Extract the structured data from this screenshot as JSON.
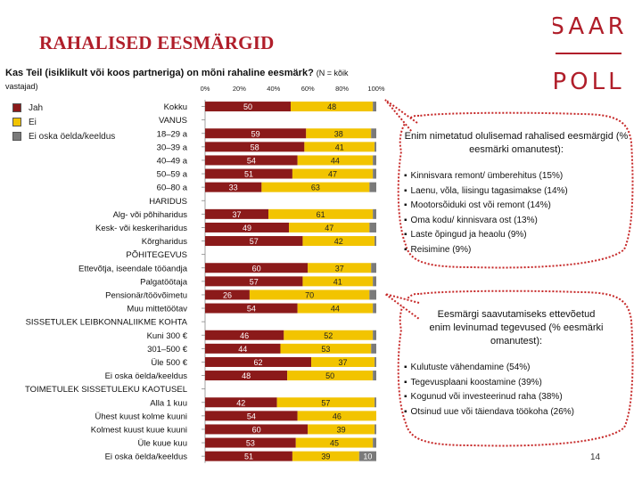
{
  "slide": {
    "title": "RAHALISED EESMÄRGID",
    "page_number": "14"
  },
  "logo": {
    "top_text": "SAAR",
    "bottom_text": "POLL",
    "accent": "#b01e2a"
  },
  "question": {
    "main": "Kas Teil (isiklikult või koos partneriga) on mõni rahaline eesmärk?",
    "note": "(N = kõik",
    "note2": "vastajad)"
  },
  "colors": {
    "jah": "#8b1a1a",
    "ei": "#f2c400",
    "eos": "#7a7a7a",
    "callout_border": "#c62828"
  },
  "callout1": {
    "title": "Enim nimetatud olulisemad rahalised eesmärgid (% eesmärki omanutest):",
    "items": [
      "Kinnisvara remont/ ümberehitus (15%)",
      "Laenu, võla, liisingu tagasimakse (14%)",
      "Mootorsõiduki ost või remont (14%)",
      "Oma kodu/ kinnisvara ost (13%)",
      "Laste õpingud ja heaolu (9%)",
      "Reisimine (9%)"
    ]
  },
  "callout2": {
    "title": "Eesmärgi saavutamiseks ettevõetud enim levinumad tegevused (% eesmärki omanutest):",
    "items": [
      "Kulutuste vähendamine (54%)",
      "Tegevusplaani koostamine (39%)",
      "Kogunud või investeerinud raha (38%)",
      "Otsinud uue või täiendava töökoha (26%)"
    ]
  },
  "chart_data": {
    "type": "bar",
    "orientation": "horizontal-stacked-100",
    "xlim": [
      0,
      100
    ],
    "xticks": [
      "0%",
      "20%",
      "40%",
      "60%",
      "80%",
      "100%"
    ],
    "legend": [
      "Jah",
      "Ei",
      "Ei oska öelda/keeldus"
    ],
    "rows": [
      {
        "label": "Kokku",
        "values": [
          50,
          48,
          2
        ],
        "labels": [
          "50",
          "48",
          ""
        ]
      },
      {
        "label": "VANUS",
        "header": true
      },
      {
        "label": "18–29 a",
        "values": [
          59,
          38,
          3
        ],
        "labels": [
          "59",
          "38",
          ""
        ]
      },
      {
        "label": "30–39 a",
        "values": [
          58,
          41,
          1
        ],
        "labels": [
          "58",
          "41",
          ""
        ]
      },
      {
        "label": "40–49 a",
        "values": [
          54,
          44,
          2
        ],
        "labels": [
          "54",
          "44",
          ""
        ]
      },
      {
        "label": "50–59 a",
        "values": [
          51,
          47,
          2
        ],
        "labels": [
          "51",
          "47",
          ""
        ]
      },
      {
        "label": "60–80 a",
        "values": [
          33,
          63,
          4
        ],
        "labels": [
          "33",
          "63",
          ""
        ]
      },
      {
        "label": "HARIDUS",
        "header": true
      },
      {
        "label": "Alg- või põhiharidus",
        "values": [
          37,
          61,
          2
        ],
        "labels": [
          "37",
          "61",
          ""
        ]
      },
      {
        "label": "Kesk- või keskeriharidus",
        "values": [
          49,
          47,
          4
        ],
        "labels": [
          "49",
          "47",
          ""
        ]
      },
      {
        "label": "Kõrgharidus",
        "values": [
          57,
          42,
          1
        ],
        "labels": [
          "57",
          "42",
          ""
        ]
      },
      {
        "label": "PÕHITEGEVUS",
        "header": true
      },
      {
        "label": "Ettevõtja, iseendale tööandja",
        "values": [
          60,
          37,
          3
        ],
        "labels": [
          "60",
          "37",
          ""
        ]
      },
      {
        "label": "Palgatöötaja",
        "values": [
          57,
          41,
          2
        ],
        "labels": [
          "57",
          "41",
          ""
        ]
      },
      {
        "label": "Pensionär/töövõimetu",
        "values": [
          26,
          70,
          4
        ],
        "labels": [
          "26",
          "70",
          ""
        ]
      },
      {
        "label": "Muu mittetöötav",
        "values": [
          54,
          44,
          2
        ],
        "labels": [
          "54",
          "44",
          ""
        ]
      },
      {
        "label": "SISSETULEK LEIBKONNALIIKME KOHTA",
        "header": true
      },
      {
        "label": "Kuni 300 €",
        "values": [
          46,
          52,
          2
        ],
        "labels": [
          "46",
          "52",
          ""
        ]
      },
      {
        "label": "301–500 €",
        "values": [
          44,
          53,
          3
        ],
        "labels": [
          "44",
          "53",
          ""
        ]
      },
      {
        "label": "Üle 500 €",
        "values": [
          62,
          37,
          1
        ],
        "labels": [
          "62",
          "37",
          ""
        ]
      },
      {
        "label": "Ei oska öelda/keeldus",
        "values": [
          48,
          50,
          2
        ],
        "labels": [
          "48",
          "50",
          ""
        ]
      },
      {
        "label": "TOIMETULEK SISSETULEKU KAOTUSEL",
        "header": true
      },
      {
        "label": "Alla 1 kuu",
        "values": [
          42,
          57,
          1
        ],
        "labels": [
          "42",
          "57",
          ""
        ]
      },
      {
        "label": "Ühest kuust kolme kuuni",
        "values": [
          54,
          46,
          0
        ],
        "labels": [
          "54",
          "46",
          ""
        ]
      },
      {
        "label": "Kolmest kuust kuue kuuni",
        "values": [
          60,
          39,
          1
        ],
        "labels": [
          "60",
          "39",
          ""
        ]
      },
      {
        "label": "Üle kuue kuu",
        "values": [
          53,
          45,
          2
        ],
        "labels": [
          "53",
          "45",
          ""
        ]
      },
      {
        "label": "Ei oska öelda/keeldus",
        "values": [
          51,
          39,
          10
        ],
        "labels": [
          "51",
          "39",
          "10"
        ]
      }
    ]
  }
}
